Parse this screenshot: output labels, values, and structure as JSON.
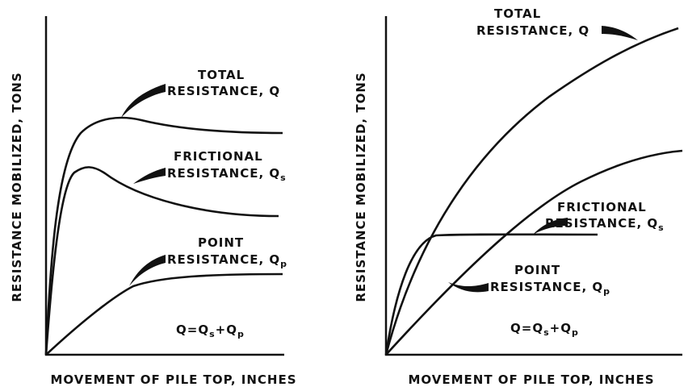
{
  "panels": [
    {
      "y_axis_label": "RESISTANCE MOBILIZED, TONS",
      "x_axis_label": "MOVEMENT OF PILE TOP, INCHES",
      "curves": [
        {
          "line1": "TOTAL",
          "line2": "RESISTANCE, Q"
        },
        {
          "line1": "FRICTIONAL",
          "line2": "RESISTANCE, Q",
          "subscript": "s"
        },
        {
          "line1": "POINT",
          "line2": "RESISTANCE, Q",
          "subscript": "p"
        }
      ],
      "equation": {
        "part1": "Q=Q",
        "sub1": "s",
        "part2": "+Q",
        "sub2": "p"
      }
    },
    {
      "y_axis_label": "RESISTANCE MOBILIZED, TONS",
      "x_axis_label": "MOVEMENT OF PILE TOP, INCHES",
      "curves": [
        {
          "line1": "TOTAL",
          "line2": "RESISTANCE, Q"
        },
        {
          "line1": "FRICTIONAL",
          "line2": "RESISTANCE, Q",
          "subscript": "s"
        },
        {
          "line1": "POINT",
          "line2": "RESISTANCE, Q",
          "subscript": "p"
        }
      ],
      "equation": {
        "part1": "Q=Q",
        "sub1": "s",
        "part2": "+Q",
        "sub2": "p"
      }
    }
  ]
}
